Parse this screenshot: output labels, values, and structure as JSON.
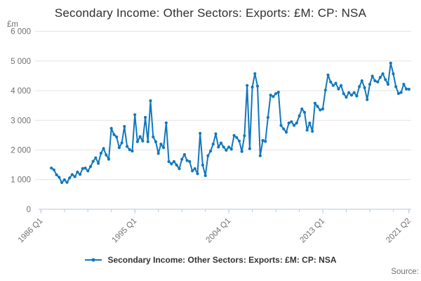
{
  "header": {
    "title": "Secondary Income: Other Sectors: Exports: £M: CP: NSA"
  },
  "y_axis": {
    "unit": "£m",
    "ticks": [
      "6 000",
      "5 000",
      "4 000",
      "3 000",
      "2 000",
      "1 000",
      "0"
    ],
    "tick_values": [
      6000,
      5000,
      4000,
      3000,
      2000,
      1000,
      0
    ]
  },
  "x_axis": {
    "major_ticks": [
      {
        "label": "1986 Q1",
        "quarter_index": 0
      },
      {
        "label": "1995 Q1",
        "quarter_index": 36
      },
      {
        "label": "2004 Q1",
        "quarter_index": 72
      },
      {
        "label": "2013 Q1",
        "quarter_index": 108
      },
      {
        "label": "2021 Q2",
        "quarter_index": 141
      }
    ],
    "minor_tick_every_quarters": 9
  },
  "legend": {
    "label": "Secondary Income: Other Sectors: Exports: £M: CP: NSA"
  },
  "source": {
    "label": "Source:"
  },
  "colors": {
    "line": "#1277bc",
    "grid": "#e2e2e2",
    "axis": "#b7c6de",
    "text": "#6f6f6f",
    "title": "#2f2f2f"
  },
  "chart_data": {
    "type": "line",
    "title": "Secondary Income: Other Sectors: Exports: £M: CP: NSA",
    "ylabel": "£m",
    "ylim": [
      0,
      6000
    ],
    "x_range": [
      "1986 Q1",
      "2021 Q2"
    ],
    "grid": true,
    "legend_position": "bottom",
    "frequency": "quarterly",
    "series": [
      {
        "name": "Secondary Income: Other Sectors: Exports: £M: CP: NSA",
        "start": "1987 Q1",
        "start_quarter_index": 4,
        "values": [
          1390,
          1330,
          1160,
          1080,
          900,
          995,
          905,
          1060,
          1170,
          1100,
          1255,
          1175,
          1375,
          1390,
          1295,
          1440,
          1615,
          1735,
          1550,
          1890,
          2050,
          1835,
          1690,
          2730,
          2520,
          2440,
          2080,
          2240,
          2795,
          2120,
          2010,
          1965,
          3190,
          2280,
          2450,
          2300,
          3100,
          2280,
          3660,
          2440,
          2280,
          1885,
          2200,
          2080,
          2915,
          1610,
          1530,
          1610,
          1490,
          1370,
          1685,
          1845,
          1645,
          1610,
          1295,
          1370,
          1200,
          2560,
          1490,
          1135,
          1805,
          1965,
          2200,
          2545,
          2100,
          2235,
          2100,
          1990,
          2100,
          2025,
          2490,
          2420,
          2300,
          1950,
          2480,
          4175,
          2045,
          4120,
          4575,
          4155,
          1805,
          2320,
          2290,
          3100,
          3850,
          3800,
          3900,
          3950,
          2830,
          2710,
          2600,
          2910,
          2950,
          2830,
          2910,
          3150,
          3385,
          3270,
          2670,
          2910,
          2630,
          3580,
          3470,
          3350,
          3385,
          4020,
          4530,
          4295,
          4175,
          4250,
          4060,
          4175,
          3900,
          3780,
          3935,
          3850,
          3935,
          3820,
          4135,
          4335,
          4100,
          3700,
          4215,
          4490,
          4335,
          4295,
          4450,
          4570,
          4375,
          4215,
          4930,
          4570,
          4135,
          3905,
          3940,
          4215,
          4060,
          4050
        ]
      }
    ]
  }
}
